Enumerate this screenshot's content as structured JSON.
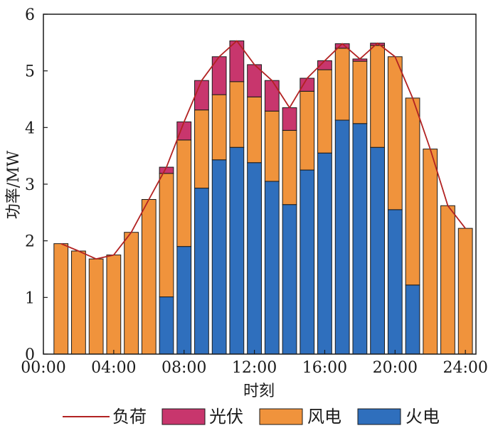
{
  "chart_data": {
    "type": "bar",
    "stacked": true,
    "title": "",
    "xlabel": "时刻",
    "ylabel": "功率/MW",
    "ylim": [
      0,
      6
    ],
    "yticks": [
      0,
      1,
      2,
      3,
      4,
      5,
      6
    ],
    "xtick_labels": [
      "00:00",
      "04:00",
      "08:00",
      "12:00",
      "16:00",
      "20:00",
      "24:00"
    ],
    "categories": [
      1,
      2,
      3,
      4,
      5,
      6,
      7,
      8,
      9,
      10,
      11,
      12,
      13,
      14,
      15,
      16,
      17,
      18,
      19,
      20,
      21,
      22,
      23,
      24
    ],
    "series": [
      {
        "name": "火电",
        "color": "#2f6fbd",
        "values": [
          0,
          0,
          0,
          0,
          0,
          0,
          1.01,
          1.9,
          2.93,
          3.43,
          3.65,
          3.38,
          3.05,
          2.64,
          3.25,
          3.55,
          4.13,
          4.07,
          3.65,
          2.55,
          1.22,
          0,
          0,
          0
        ]
      },
      {
        "name": "风电",
        "color": "#f0933c",
        "values": [
          1.95,
          1.82,
          1.68,
          1.75,
          2.15,
          2.73,
          2.18,
          1.88,
          1.38,
          1.15,
          1.16,
          1.16,
          1.24,
          1.31,
          1.39,
          1.47,
          1.27,
          1.1,
          1.8,
          2.7,
          3.3,
          3.62,
          2.62,
          2.22
        ]
      },
      {
        "name": "光伏",
        "color": "#c8366d",
        "values": [
          0,
          0,
          0,
          0,
          0,
          0,
          0.11,
          0.32,
          0.52,
          0.67,
          0.72,
          0.57,
          0.54,
          0.4,
          0.23,
          0.16,
          0.08,
          0.04,
          0.04,
          0,
          0,
          0,
          0,
          0
        ]
      }
    ],
    "line": {
      "name": "负荷",
      "color": "#b22222",
      "values": [
        1.95,
        1.82,
        1.68,
        1.75,
        2.15,
        2.73,
        3.3,
        4.1,
        4.83,
        5.25,
        5.53,
        5.11,
        4.83,
        4.35,
        4.87,
        5.18,
        5.48,
        5.21,
        5.49,
        5.25,
        4.52,
        3.62,
        2.62,
        2.22
      ]
    },
    "legend": {
      "position": "bottom",
      "items": [
        {
          "label": "负荷",
          "kind": "line",
          "color": "#b22222"
        },
        {
          "label": "光伏",
          "kind": "box",
          "color": "#c8366d"
        },
        {
          "label": "风电",
          "kind": "box",
          "color": "#f0933c"
        },
        {
          "label": "火电",
          "kind": "box",
          "color": "#2f6fbd"
        }
      ]
    },
    "grid": false
  }
}
